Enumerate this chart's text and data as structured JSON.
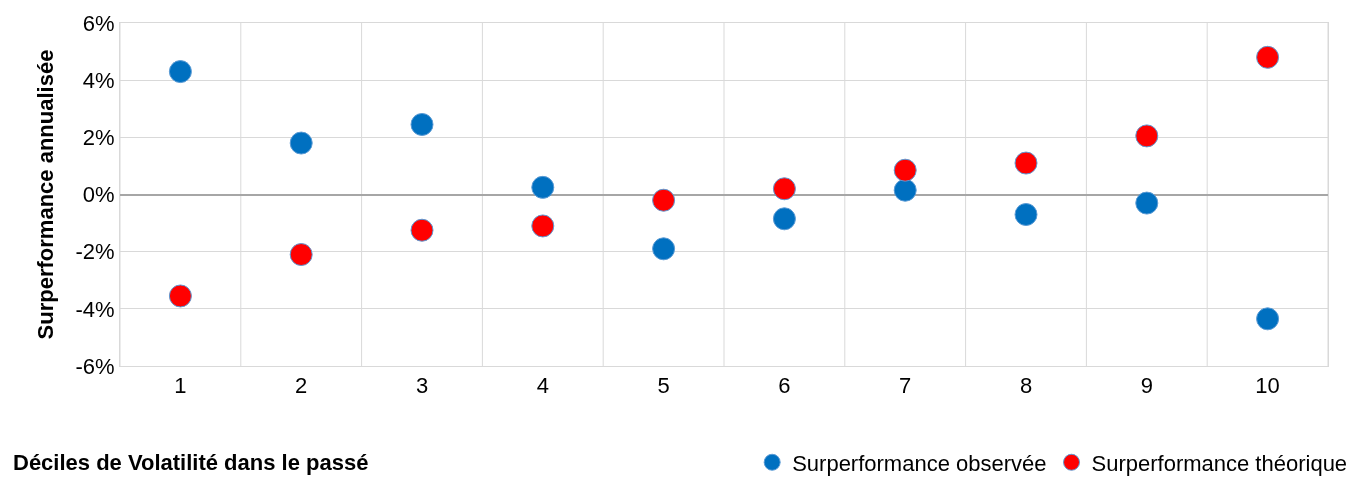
{
  "chart_data": {
    "type": "scatter",
    "xlabel": "Déciles de Volatilité dans le passé",
    "ylabel": "Surperformance annualisée",
    "categories": [
      "1",
      "2",
      "3",
      "4",
      "5",
      "6",
      "7",
      "8",
      "9",
      "10"
    ],
    "series": [
      {
        "name": "Surperformance observée",
        "color": "#0070c0",
        "values": [
          4.3,
          1.8,
          2.45,
          0.25,
          -1.9,
          -0.85,
          0.15,
          -0.7,
          -0.3,
          -4.35
        ]
      },
      {
        "name": "Surperformance théorique",
        "color": "#ff0000",
        "values": [
          -3.55,
          -2.1,
          -1.25,
          -1.1,
          -0.2,
          0.2,
          0.85,
          1.1,
          2.05,
          4.8
        ]
      }
    ],
    "ylim": [
      -6,
      6
    ],
    "yticks": [
      {
        "value": -6,
        "label": "-6%"
      },
      {
        "value": -4,
        "label": "-4%"
      },
      {
        "value": -2,
        "label": "-2%"
      },
      {
        "value": 0,
        "label": "0%"
      },
      {
        "value": 2,
        "label": "2%"
      },
      {
        "value": 4,
        "label": "4%"
      },
      {
        "value": 6,
        "label": "6%"
      }
    ],
    "grid": true,
    "legend": "bottom right",
    "marker": "circle"
  }
}
